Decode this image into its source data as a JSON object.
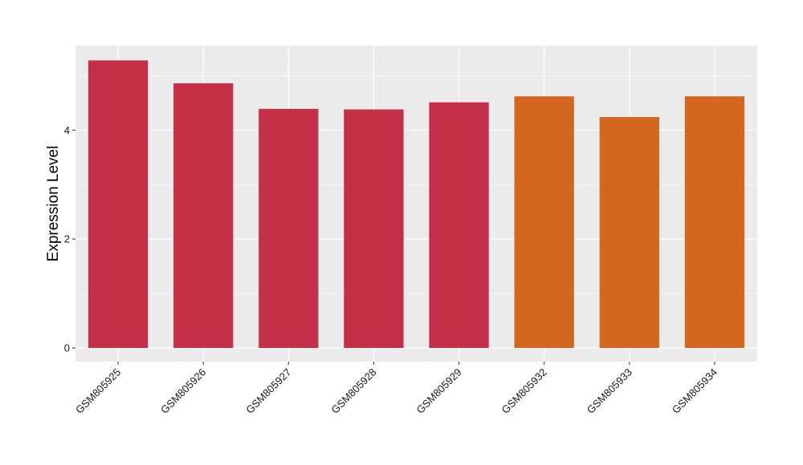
{
  "chart_data": {
    "type": "bar",
    "title": "",
    "xlabel": "",
    "ylabel": "Expression Level",
    "categories": [
      "GSM805925",
      "GSM805926",
      "GSM805927",
      "GSM805928",
      "GSM805929",
      "GSM805932",
      "GSM805933",
      "GSM805934"
    ],
    "values": [
      5.28,
      4.86,
      4.39,
      4.38,
      4.51,
      4.62,
      4.24,
      4.62
    ],
    "groups": [
      "red",
      "red",
      "red",
      "red",
      "red",
      "orange",
      "orange",
      "orange"
    ],
    "colors": {
      "red": "#C33047",
      "orange": "#D3671F"
    },
    "ylim": [
      -0.25,
      5.55
    ],
    "yticks": [
      0,
      2,
      4
    ],
    "panel_background": "#EBEBEB",
    "grid_color": "#FFFFFF",
    "grid": true,
    "legend": "none"
  }
}
